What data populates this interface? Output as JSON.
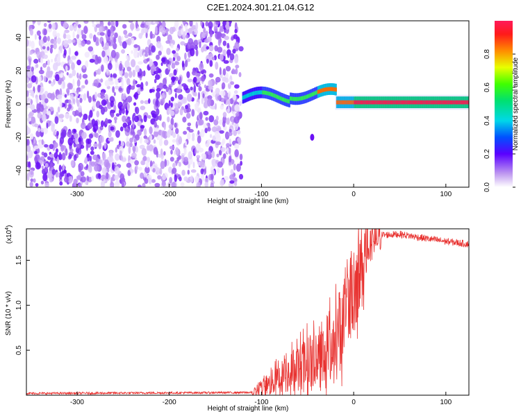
{
  "title": "C2E1.2024.301.21.04.G12",
  "chart_data": [
    {
      "type": "heatmap",
      "xlabel": "Height of straight line (km)",
      "ylabel": "Frequency (Hz)",
      "xlim": [
        -355,
        125
      ],
      "ylim": [
        -50,
        50
      ],
      "x_ticks": [
        -300,
        -200,
        -100,
        0,
        100
      ],
      "y_ticks": [
        -40,
        -20,
        0,
        20,
        40
      ],
      "colorbar": {
        "label": "Normalized spectral amplitude",
        "range": [
          0,
          1
        ],
        "ticks": [
          "0.0",
          "0.2",
          "0.4",
          "0.6",
          "0.8"
        ]
      },
      "regions": [
        {
          "description_x_range": [
            -355,
            -120
          ],
          "frequency_range": [
            -50,
            50
          ],
          "amplitude": "low (0.0-0.2), scattered noise"
        },
        {
          "description_x_range": [
            -120,
            125
          ],
          "frequency": "about 1 Hz, wandering 0-10 Hz for -120..-20",
          "amplitude": "rising to ~0.95 near 0-100 km"
        }
      ],
      "isolated_blob": {
        "x": -45,
        "y": -20
      }
    },
    {
      "type": "line",
      "xlabel": "Height of straight line (km)",
      "ylabel": "SNR (10 * v/v)",
      "y_multiplier": "(x10",
      "y_multiplier_exp": "4",
      "xlim": [
        -355,
        125
      ],
      "ylim": [
        0,
        1.85
      ],
      "x_ticks": [
        -300,
        -200,
        -100,
        0,
        100
      ],
      "y_ticks": [
        "0.5",
        "1.0",
        "1.5"
      ],
      "series_color": "#e8312f",
      "trend": [
        {
          "x": -355,
          "y": 0.02
        },
        {
          "x": -110,
          "y": 0.03
        },
        {
          "x": -95,
          "y": 0.1
        },
        {
          "x": -70,
          "y": 0.25
        },
        {
          "x": -50,
          "y": 0.35
        },
        {
          "x": -35,
          "y": 0.42
        },
        {
          "x": -20,
          "y": 0.55
        },
        {
          "x": -10,
          "y": 0.9
        },
        {
          "x": 0,
          "y": 1.2
        },
        {
          "x": 10,
          "y": 1.45
        },
        {
          "x": 20,
          "y": 1.7
        },
        {
          "x": 30,
          "y": 1.78
        },
        {
          "x": 50,
          "y": 1.79
        },
        {
          "x": 80,
          "y": 1.74
        },
        {
          "x": 100,
          "y": 1.71
        },
        {
          "x": 125,
          "y": 1.68
        }
      ]
    }
  ]
}
